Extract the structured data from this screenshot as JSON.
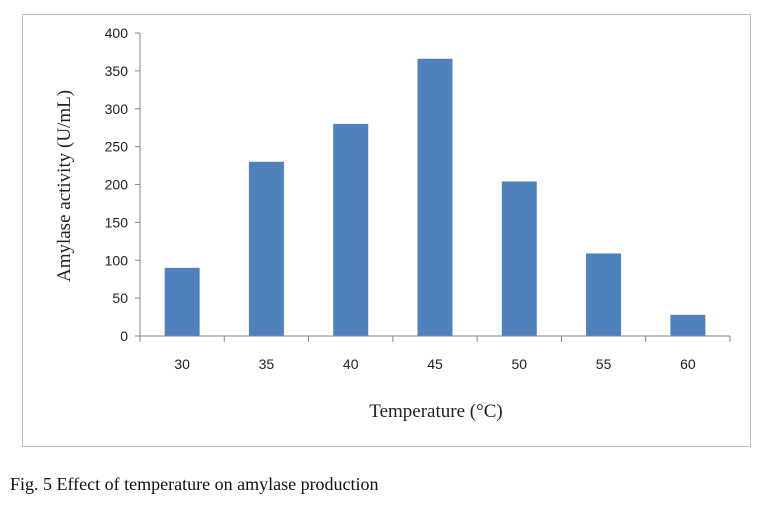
{
  "caption": "Fig. 5 Effect of temperature on amylase production",
  "chart_data": {
    "type": "bar",
    "categories": [
      "30",
      "35",
      "40",
      "45",
      "50",
      "55",
      "60"
    ],
    "values": [
      90,
      230,
      280,
      366,
      204,
      109,
      28
    ],
    "title": "",
    "xlabel": "Temperature (°C)",
    "ylabel": "Amylase activity (U/mL)",
    "ylim": [
      0,
      400
    ],
    "yticks": [
      "0",
      "50",
      "100",
      "150",
      "200",
      "250",
      "300",
      "350",
      "400"
    ],
    "grid": false,
    "legend": "none",
    "bar_color": "#4F81BD"
  }
}
